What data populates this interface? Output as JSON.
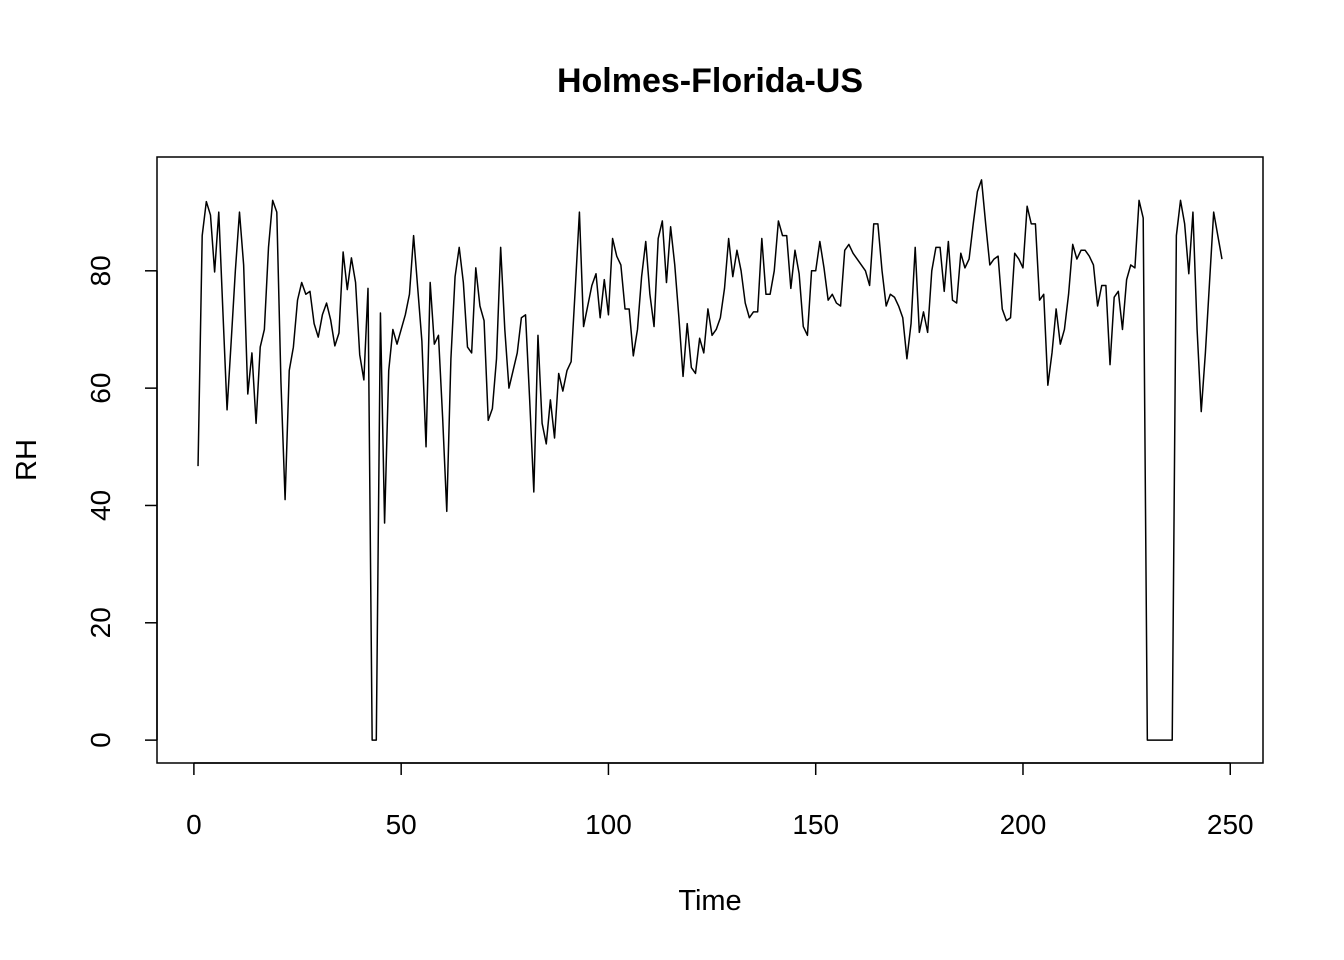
{
  "chart_data": {
    "type": "line",
    "title": "Holmes-Florida-US",
    "x_label": "Time",
    "y_label": "RH",
    "x": [
      1,
      2,
      3,
      4,
      5,
      6,
      7,
      8,
      9,
      10,
      11,
      12,
      13,
      14,
      15,
      16,
      17,
      18,
      19,
      20,
      21,
      22,
      23,
      24,
      25,
      26,
      27,
      28,
      29,
      30,
      31,
      32,
      33,
      34,
      35,
      36,
      37,
      38,
      39,
      40,
      41,
      42,
      43,
      44,
      45,
      46,
      47,
      48,
      49,
      50,
      51,
      52,
      53,
      54,
      55,
      56,
      57,
      58,
      59,
      60,
      61,
      62,
      63,
      64,
      65,
      66,
      67,
      68,
      69,
      70,
      71,
      72,
      73,
      74,
      75,
      76,
      77,
      78,
      79,
      80,
      81,
      82,
      83,
      84,
      85,
      86,
      87,
      88,
      89,
      90,
      91,
      92,
      93,
      94,
      95,
      96,
      97,
      98,
      99,
      100,
      101,
      102,
      103,
      104,
      105,
      106,
      107,
      108,
      109,
      110,
      111,
      112,
      113,
      114,
      115,
      116,
      117,
      118,
      119,
      120,
      121,
      122,
      123,
      124,
      125,
      126,
      127,
      128,
      129,
      130,
      131,
      132,
      133,
      134,
      135,
      136,
      137,
      138,
      139,
      140,
      141,
      142,
      143,
      144,
      145,
      146,
      147,
      148,
      149,
      150,
      151,
      152,
      153,
      154,
      155,
      156,
      157,
      158,
      159,
      160,
      161,
      162,
      163,
      164,
      165,
      166,
      167,
      168,
      169,
      170,
      171,
      172,
      173,
      174,
      175,
      176,
      177,
      178,
      179,
      180,
      181,
      182,
      183,
      184,
      185,
      186,
      187,
      188,
      189,
      190,
      191,
      192,
      193,
      194,
      195,
      196,
      197,
      198,
      199,
      200,
      201,
      202,
      203,
      204,
      205,
      206,
      207,
      208,
      209,
      210,
      211,
      212,
      213,
      214,
      215,
      216,
      217,
      218,
      219,
      220,
      221,
      222,
      223,
      224,
      225,
      226,
      227,
      228,
      229,
      230,
      231,
      232,
      233,
      234,
      235,
      236,
      237,
      238,
      239,
      240,
      241,
      242,
      243,
      244,
      245,
      246,
      247,
      248
    ],
    "values": [
      46.7,
      86,
      91.8,
      89.5,
      79.8,
      90,
      73,
      56.3,
      68,
      80,
      90,
      81,
      59,
      66,
      54,
      67,
      70,
      84,
      92,
      90,
      61,
      41,
      63,
      67,
      75,
      78,
      76,
      76.5,
      71,
      68.7,
      72.5,
      74.5,
      71.6,
      67.2,
      69.4,
      83.2,
      76.8,
      82.2,
      78,
      65.7,
      61.4,
      77,
      0,
      0,
      72.8,
      37,
      63,
      70,
      67.5,
      70,
      72.5,
      76,
      86,
      77,
      68,
      50,
      78,
      67.5,
      69,
      55,
      39,
      65,
      79,
      84,
      78,
      67,
      66,
      80.5,
      74,
      71.5,
      54.5,
      56.5,
      65,
      84,
      70,
      60,
      63,
      66,
      72,
      72.5,
      58,
      42.3,
      69,
      54,
      50.5,
      58,
      51.5,
      62.5,
      59.5,
      63,
      64.5,
      77,
      90,
      70.5,
      74,
      77.5,
      79.5,
      72,
      78.5,
      72.5,
      85.5,
      82.5,
      81,
      73.5,
      73.5,
      65.5,
      70,
      79,
      85,
      76,
      70.5,
      85.5,
      88.5,
      78,
      87.5,
      81,
      72,
      62,
      71,
      63.5,
      62.5,
      68.5,
      66,
      73.5,
      69,
      70,
      72,
      77,
      85.5,
      79,
      83.5,
      80,
      74.5,
      72,
      73,
      73,
      85.5,
      76,
      76,
      80,
      88.5,
      86,
      86,
      77,
      83.5,
      79.5,
      70.5,
      69,
      80,
      80,
      85,
      80.5,
      75,
      76,
      74.5,
      74,
      83.5,
      84.5,
      83,
      82,
      81,
      80,
      77.5,
      88,
      88,
      80,
      74,
      76,
      75.5,
      74,
      72,
      65,
      71,
      84,
      69.5,
      73,
      69.5,
      80,
      84,
      84,
      76.5,
      85,
      75,
      74.5,
      83,
      80.5,
      82,
      88,
      93.5,
      95.5,
      88,
      81,
      82,
      82.5,
      73.5,
      71.5,
      72,
      83,
      82,
      80.5,
      91,
      88,
      88,
      75,
      76,
      60.5,
      66,
      73.5,
      67.5,
      70,
      76,
      84.5,
      82,
      83.5,
      83.5,
      82.5,
      81,
      74,
      77.5,
      77.5,
      64,
      75.5,
      76.5,
      70,
      78.5,
      81,
      80.5,
      92,
      89,
      0,
      0,
      0,
      0,
      0,
      0,
      0,
      86,
      92,
      88,
      79.5,
      90,
      70,
      56,
      66,
      78,
      90,
      86,
      82
    ],
    "color": "#000000",
    "xlim": [
      -8.9,
      257.9
    ],
    "ylim": [
      -3.9,
      99.4
    ],
    "xticks": [
      0,
      50,
      100,
      150,
      200,
      250
    ],
    "yticks": [
      0,
      20,
      40,
      60,
      80
    ]
  }
}
